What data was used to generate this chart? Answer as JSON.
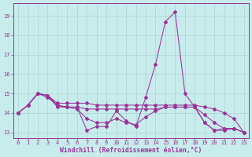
{
  "xlabel": "Windchill (Refroidissement éolien,°C)",
  "bg_color": "#c8ecec",
  "grid_color": "#b0d8d8",
  "line_color": "#993399",
  "x": [
    0,
    1,
    2,
    3,
    4,
    5,
    6,
    7,
    8,
    9,
    10,
    11,
    12,
    13,
    14,
    15,
    16,
    17,
    18,
    19,
    20,
    21,
    22,
    23
  ],
  "line1": [
    14.0,
    14.4,
    15.0,
    14.9,
    14.3,
    14.3,
    14.3,
    13.1,
    13.3,
    13.3,
    14.1,
    13.6,
    13.3,
    14.8,
    16.5,
    18.7,
    19.2,
    15.0,
    14.3,
    13.5,
    13.1,
    13.2,
    13.2,
    13.0
  ],
  "line2": [
    14.0,
    14.4,
    15.0,
    14.9,
    14.5,
    14.5,
    14.5,
    14.5,
    14.4,
    14.4,
    14.4,
    14.4,
    14.4,
    14.4,
    14.4,
    14.4,
    14.4,
    14.4,
    14.4,
    14.3,
    14.2,
    14.0,
    13.7,
    13.0
  ],
  "line3": [
    14.0,
    14.4,
    15.0,
    14.8,
    14.4,
    14.3,
    14.3,
    14.2,
    14.2,
    14.2,
    14.2,
    14.2,
    14.2,
    14.2,
    14.2,
    14.3,
    14.3,
    14.3,
    14.3,
    13.9,
    13.5,
    13.2,
    13.2,
    13.0
  ],
  "line4": [
    14.0,
    14.4,
    15.0,
    14.9,
    14.4,
    14.3,
    14.2,
    13.7,
    13.5,
    13.5,
    13.7,
    13.5,
    13.4,
    13.8,
    14.1,
    14.3,
    14.3,
    14.3,
    14.3,
    13.5,
    13.1,
    13.1,
    13.2,
    13.0
  ],
  "ylim": [
    12.7,
    19.65
  ],
  "xlim": [
    -0.5,
    23.5
  ],
  "yticks": [
    13,
    14,
    15,
    16,
    17,
    18,
    19
  ],
  "xticks": [
    0,
    1,
    2,
    3,
    4,
    5,
    6,
    7,
    8,
    9,
    10,
    11,
    12,
    13,
    14,
    15,
    16,
    17,
    18,
    19,
    20,
    21,
    22,
    23
  ],
  "font_color": "#993399",
  "tick_fontsize": 5.0,
  "xlabel_fontsize": 5.8
}
